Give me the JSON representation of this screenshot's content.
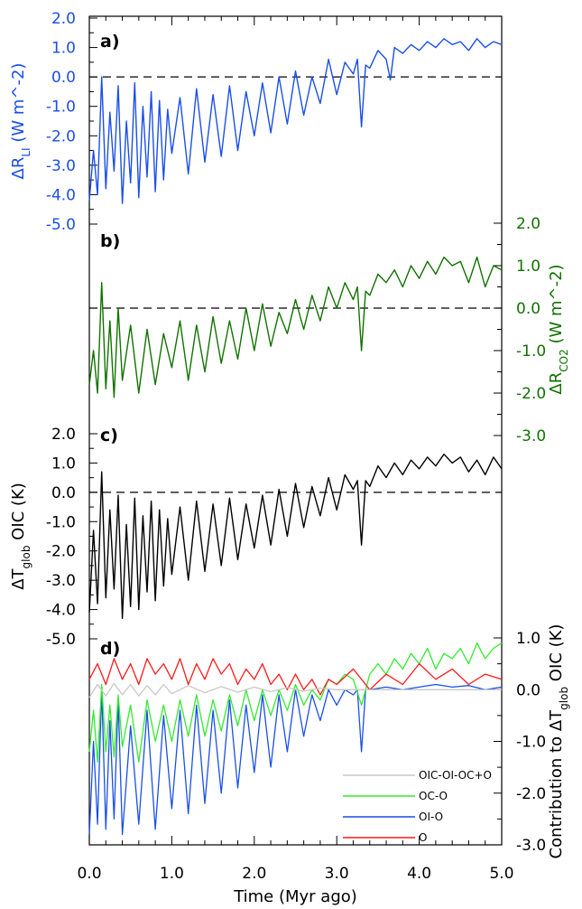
{
  "chart_data": [
    {
      "type": "line",
      "panel_label": "a)",
      "color": "#1a4fe8",
      "axis_side": "left",
      "ylabel_main": "ΔR",
      "ylabel_sub": "LI",
      "ylabel_rest": " (W m^-2)",
      "ylim": [
        -5.0,
        2.0
      ],
      "yticks": [
        "2.0",
        "1.0",
        "0.0",
        "-1.0",
        "-2.0",
        "-3.0",
        "-4.0",
        "-5.0"
      ],
      "xlim": [
        0.0,
        5.0
      ],
      "zero_line": true,
      "series": [
        {
          "x": [
            0.0,
            0.05,
            0.1,
            0.15,
            0.2,
            0.25,
            0.3,
            0.35,
            0.4,
            0.45,
            0.5,
            0.55,
            0.6,
            0.65,
            0.7,
            0.75,
            0.8,
            0.85,
            0.9,
            0.95,
            1.0,
            1.1,
            1.2,
            1.3,
            1.4,
            1.5,
            1.6,
            1.7,
            1.8,
            1.9,
            2.0,
            2.1,
            2.2,
            2.3,
            2.4,
            2.5,
            2.6,
            2.7,
            2.8,
            2.9,
            3.0,
            3.1,
            3.2,
            3.25,
            3.3,
            3.35,
            3.4,
            3.5,
            3.6,
            3.65,
            3.7,
            3.8,
            3.9,
            4.0,
            4.1,
            4.2,
            4.3,
            4.4,
            4.5,
            4.6,
            4.7,
            4.8,
            4.9,
            5.0
          ],
          "y": [
            -4.2,
            -2.5,
            -4.0,
            0.0,
            -3.8,
            -1.2,
            -3.2,
            -0.3,
            -4.3,
            -1.5,
            -3.6,
            -0.2,
            -4.1,
            -1.0,
            -3.4,
            -0.5,
            -3.9,
            -0.8,
            -3.5,
            -1.1,
            -2.6,
            -0.7,
            -3.3,
            -0.4,
            -2.9,
            -0.6,
            -2.7,
            -0.3,
            -2.5,
            -0.5,
            -2.0,
            -0.2,
            -1.9,
            0.0,
            -1.6,
            0.2,
            -1.3,
            0.0,
            -0.9,
            0.6,
            -0.6,
            0.5,
            0.1,
            0.6,
            -1.7,
            0.4,
            0.3,
            0.9,
            0.6,
            -0.1,
            1.0,
            0.8,
            1.1,
            0.9,
            1.2,
            1.0,
            1.3,
            1.1,
            1.2,
            0.9,
            1.3,
            1.0,
            1.2,
            1.1
          ]
        }
      ]
    },
    {
      "type": "line",
      "panel_label": "b)",
      "color": "#117200",
      "axis_side": "right",
      "ylabel_main": "ΔR",
      "ylabel_sub": "CO2",
      "ylabel_rest": " (W m^-2)",
      "ylim": [
        -3.0,
        2.0
      ],
      "yticks": [
        "2.0",
        "1.0",
        "0.0",
        "-1.0",
        "-2.0",
        "-3.0"
      ],
      "xlim": [
        0.0,
        5.0
      ],
      "zero_line": true,
      "series": [
        {
          "x": [
            0.0,
            0.05,
            0.1,
            0.15,
            0.2,
            0.25,
            0.3,
            0.35,
            0.4,
            0.5,
            0.6,
            0.7,
            0.8,
            0.9,
            1.0,
            1.1,
            1.2,
            1.3,
            1.4,
            1.5,
            1.6,
            1.7,
            1.8,
            1.9,
            2.0,
            2.1,
            2.2,
            2.3,
            2.4,
            2.5,
            2.6,
            2.7,
            2.8,
            2.9,
            3.0,
            3.1,
            3.2,
            3.25,
            3.3,
            3.35,
            3.4,
            3.5,
            3.6,
            3.7,
            3.8,
            3.9,
            4.0,
            4.1,
            4.2,
            4.3,
            4.4,
            4.5,
            4.6,
            4.7,
            4.8,
            4.9,
            5.0
          ],
          "y": [
            -1.8,
            -1.0,
            -2.0,
            0.6,
            -1.9,
            -0.3,
            -2.1,
            0.0,
            -1.7,
            -0.4,
            -2.0,
            -0.5,
            -1.8,
            -0.6,
            -1.4,
            -0.3,
            -1.7,
            -0.4,
            -1.5,
            -0.2,
            -1.3,
            -0.3,
            -1.2,
            0.0,
            -1.0,
            0.1,
            -0.9,
            -0.1,
            -0.6,
            0.2,
            -0.5,
            0.3,
            -0.3,
            0.5,
            0.0,
            0.6,
            0.2,
            0.5,
            -1.0,
            0.4,
            0.3,
            0.8,
            0.6,
            0.9,
            0.5,
            1.0,
            0.7,
            1.1,
            0.8,
            1.2,
            1.0,
            1.1,
            0.6,
            1.2,
            0.5,
            1.0,
            0.9
          ]
        }
      ]
    },
    {
      "type": "line",
      "panel_label": "c)",
      "color": "#000000",
      "axis_side": "left",
      "ylabel_main": "ΔT",
      "ylabel_sub": "glob",
      "ylabel_rest": " OIC (K)",
      "ylim": [
        -5.0,
        2.0
      ],
      "yticks": [
        "2.0",
        "1.0",
        "0.0",
        "-1.0",
        "-2.0",
        "-3.0",
        "-4.0",
        "-5.0"
      ],
      "xlim": [
        0.0,
        5.0
      ],
      "zero_line": true,
      "series": [
        {
          "x": [
            0.0,
            0.05,
            0.1,
            0.15,
            0.2,
            0.25,
            0.3,
            0.35,
            0.4,
            0.45,
            0.5,
            0.55,
            0.6,
            0.65,
            0.7,
            0.75,
            0.8,
            0.85,
            0.9,
            0.95,
            1.0,
            1.1,
            1.2,
            1.3,
            1.4,
            1.5,
            1.6,
            1.7,
            1.8,
            1.9,
            2.0,
            2.1,
            2.2,
            2.3,
            2.4,
            2.5,
            2.6,
            2.7,
            2.8,
            2.9,
            3.0,
            3.1,
            3.2,
            3.25,
            3.3,
            3.35,
            3.4,
            3.5,
            3.6,
            3.7,
            3.8,
            3.9,
            4.0,
            4.1,
            4.2,
            4.3,
            4.4,
            4.5,
            4.6,
            4.7,
            4.8,
            4.9,
            5.0
          ],
          "y": [
            -4.1,
            -1.3,
            -3.8,
            0.7,
            -3.6,
            -0.6,
            -3.3,
            -0.1,
            -4.3,
            -1.1,
            -3.9,
            -0.2,
            -4.0,
            -0.8,
            -3.4,
            -0.3,
            -3.7,
            -0.6,
            -3.2,
            -0.9,
            -2.8,
            -0.5,
            -3.0,
            -0.3,
            -2.7,
            -0.4,
            -2.5,
            -0.2,
            -2.3,
            -0.4,
            -1.9,
            -0.1,
            -1.8,
            0.1,
            -1.5,
            0.3,
            -1.2,
            0.2,
            -0.8,
            0.5,
            -0.6,
            0.6,
            0.1,
            0.4,
            -1.8,
            0.4,
            0.2,
            0.9,
            0.5,
            1.0,
            0.6,
            1.1,
            0.8,
            1.2,
            0.9,
            1.3,
            1.0,
            1.2,
            0.7,
            1.1,
            0.6,
            1.2,
            0.8
          ]
        }
      ]
    },
    {
      "type": "line",
      "panel_label": "d)",
      "axis_side": "right",
      "ylabel_main": "Contribution to ΔT",
      "ylabel_sub": "glob",
      "ylabel_rest": " OIC (K)",
      "ylim": [
        -3.0,
        1.0
      ],
      "yticks": [
        "1.0",
        "0.0",
        "-1.0",
        "-2.0",
        "-3.0"
      ],
      "xlim": [
        0.0,
        5.0
      ],
      "xticks": [
        "0.0",
        "1.0",
        "2.0",
        "3.0",
        "4.0",
        "5.0"
      ],
      "xlabel": "Time (Myr ago)",
      "zero_line": false,
      "series": [
        {
          "name": "OI-O",
          "color": "#1a4fe8",
          "x": [
            0.0,
            0.05,
            0.1,
            0.15,
            0.2,
            0.25,
            0.3,
            0.35,
            0.4,
            0.5,
            0.6,
            0.7,
            0.8,
            0.9,
            1.0,
            1.1,
            1.2,
            1.3,
            1.4,
            1.5,
            1.6,
            1.7,
            1.8,
            1.9,
            2.0,
            2.1,
            2.2,
            2.3,
            2.4,
            2.5,
            2.6,
            2.7,
            2.8,
            2.9,
            3.0,
            3.1,
            3.2,
            3.25,
            3.3,
            3.35,
            3.4,
            3.6,
            3.8,
            4.0,
            4.2,
            4.4,
            4.6,
            4.8,
            5.0
          ],
          "y": [
            -2.8,
            -1.0,
            -2.6,
            0.0,
            -2.7,
            -0.6,
            -2.5,
            -0.2,
            -2.8,
            -0.7,
            -2.6,
            -0.4,
            -2.7,
            -0.5,
            -2.3,
            -0.4,
            -2.4,
            -0.3,
            -2.2,
            -0.4,
            -2.0,
            -0.2,
            -1.9,
            -0.3,
            -1.6,
            -0.1,
            -1.5,
            -0.1,
            -1.2,
            0.0,
            -0.9,
            -0.1,
            -0.6,
            0.0,
            -0.3,
            0.0,
            -0.1,
            0.0,
            -1.2,
            0.0,
            0.0,
            0.05,
            0.0,
            0.05,
            0.1,
            0.05,
            0.08,
            0.0,
            0.05
          ]
        },
        {
          "name": "OC-O",
          "color": "#33ea2f",
          "x": [
            0.0,
            0.05,
            0.1,
            0.15,
            0.2,
            0.25,
            0.3,
            0.35,
            0.4,
            0.5,
            0.6,
            0.7,
            0.8,
            0.9,
            1.0,
            1.1,
            1.2,
            1.3,
            1.4,
            1.5,
            1.6,
            1.7,
            1.8,
            1.9,
            2.0,
            2.1,
            2.2,
            2.3,
            2.4,
            2.5,
            2.6,
            2.7,
            2.8,
            2.9,
            3.0,
            3.1,
            3.2,
            3.3,
            3.4,
            3.5,
            3.6,
            3.7,
            3.8,
            3.9,
            4.0,
            4.1,
            4.2,
            4.3,
            4.4,
            4.5,
            4.6,
            4.7,
            4.8,
            4.9,
            5.0
          ],
          "y": [
            -1.2,
            -0.4,
            -1.4,
            0.1,
            -1.2,
            -0.3,
            -1.3,
            -0.1,
            -1.1,
            -0.3,
            -1.4,
            -0.2,
            -1.0,
            -0.3,
            -1.0,
            -0.2,
            -0.9,
            -0.1,
            -0.9,
            -0.2,
            -0.8,
            -0.1,
            -0.7,
            0.0,
            -0.6,
            0.0,
            -0.5,
            0.0,
            -0.4,
            0.1,
            -0.3,
            0.0,
            -0.2,
            0.2,
            0.1,
            0.3,
            0.2,
            -0.3,
            0.3,
            0.5,
            0.3,
            0.6,
            0.4,
            0.7,
            0.5,
            0.8,
            0.4,
            0.7,
            0.6,
            0.8,
            0.5,
            0.9,
            0.6,
            0.8,
            0.9
          ]
        },
        {
          "name": "O",
          "color": "#ff1a1a",
          "x": [
            0.0,
            0.1,
            0.2,
            0.3,
            0.4,
            0.5,
            0.6,
            0.7,
            0.8,
            0.9,
            1.0,
            1.1,
            1.2,
            1.3,
            1.4,
            1.5,
            1.6,
            1.7,
            1.8,
            1.9,
            2.0,
            2.1,
            2.2,
            2.3,
            2.4,
            2.5,
            2.6,
            2.7,
            2.8,
            2.9,
            3.0,
            3.2,
            3.4,
            3.6,
            3.8,
            4.0,
            4.2,
            4.4,
            4.6,
            4.8,
            5.0
          ],
          "y": [
            0.2,
            0.5,
            0.1,
            0.6,
            0.2,
            0.5,
            0.1,
            0.6,
            0.3,
            0.5,
            0.2,
            0.6,
            0.1,
            0.5,
            0.2,
            0.6,
            0.3,
            0.5,
            0.1,
            0.4,
            0.2,
            0.5,
            0.1,
            0.3,
            0.0,
            0.3,
            0.0,
            0.2,
            -0.1,
            0.2,
            0.1,
            0.4,
            0.0,
            0.3,
            0.1,
            0.5,
            0.2,
            0.4,
            0.1,
            0.3,
            0.2
          ]
        },
        {
          "name": "OIC-OI-OC+O",
          "color": "#c8c8c8",
          "x": [
            0.0,
            0.1,
            0.2,
            0.3,
            0.4,
            0.5,
            0.6,
            0.7,
            0.8,
            0.9,
            1.0,
            1.2,
            1.4,
            1.6,
            1.8,
            2.0,
            2.2,
            2.4,
            2.6,
            2.8,
            3.0,
            3.5,
            4.0,
            4.5,
            5.0
          ],
          "y": [
            -0.15,
            0.1,
            -0.12,
            0.12,
            -0.1,
            0.1,
            -0.12,
            0.08,
            -0.1,
            0.1,
            -0.08,
            0.08,
            -0.06,
            0.06,
            -0.05,
            0.05,
            -0.04,
            0.04,
            -0.03,
            0.03,
            0.0,
            0.0,
            0.0,
            0.0,
            0.0
          ]
        }
      ],
      "legend": [
        "OIC-OI-OC+O",
        "OC-O",
        "OI-O",
        "O"
      ],
      "legend_placement": "bottom-right"
    }
  ]
}
